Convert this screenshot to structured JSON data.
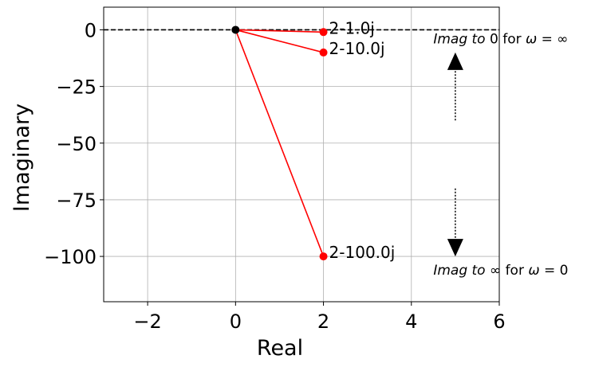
{
  "chart_data": {
    "type": "line",
    "xlabel": "Real",
    "ylabel": "Imaginary",
    "xlim": [
      -3,
      6
    ],
    "ylim": [
      -120,
      10
    ],
    "xticks": [
      -2,
      0,
      2,
      4,
      6
    ],
    "yticks": [
      0,
      -25,
      -50,
      -75,
      -100
    ],
    "grid": true,
    "origin": {
      "x": 0,
      "y": 0,
      "color": "#000000"
    },
    "reference_line": {
      "y": 0,
      "style": "dashed",
      "color": "#000000"
    },
    "series_color": "#ff0000",
    "points": [
      {
        "x": 2,
        "y": -1,
        "label": "2-1.0j"
      },
      {
        "x": 2,
        "y": -10,
        "label": "2-10.0j"
      },
      {
        "x": 2,
        "y": -100,
        "label": "2-100.0j"
      }
    ],
    "annotations": [
      {
        "id": "top",
        "italic": "Imag to",
        "rest": " 0 for ",
        "omega": "ω",
        "eq": " = ∞",
        "text_at": [
          4.5,
          -6
        ],
        "arrow_from": [
          5,
          -40
        ],
        "arrow_to": [
          5,
          -10
        ]
      },
      {
        "id": "bottom",
        "italic": "Imag to",
        "rest": " ∞ for ",
        "omega": "ω",
        "eq": " = 0",
        "text_at": [
          4.5,
          -108
        ],
        "arrow_from": [
          5,
          -70
        ],
        "arrow_to": [
          5,
          -100
        ]
      }
    ]
  }
}
